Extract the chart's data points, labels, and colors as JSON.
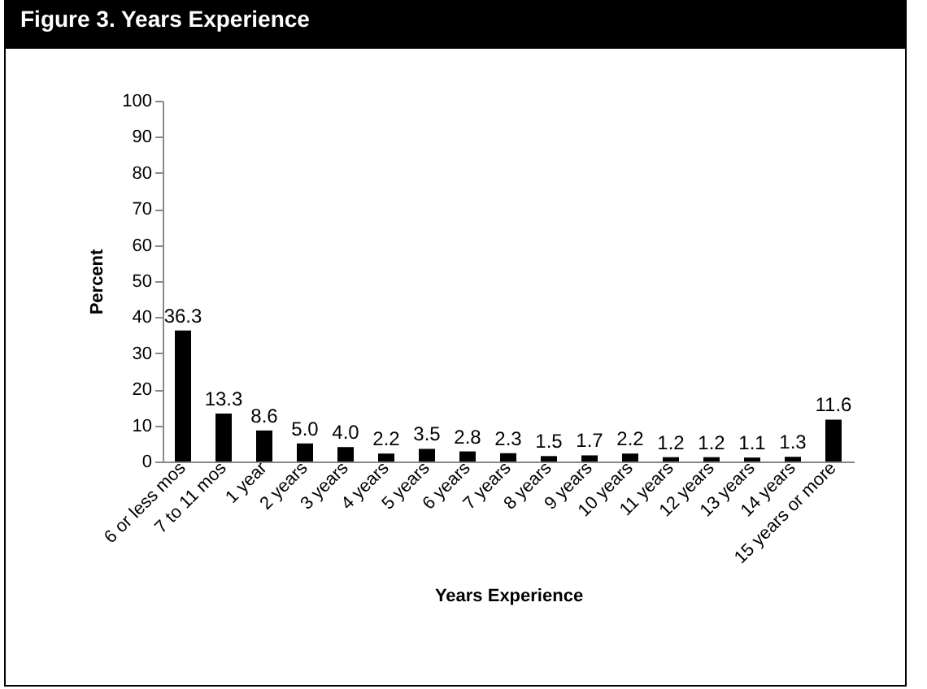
{
  "chart_data": {
    "type": "bar",
    "title": "Figure 3. Years Experience",
    "xlabel": "Years Experience",
    "ylabel": "Percent",
    "categories": [
      "6 or less mos",
      "7 to 11 mos",
      "1 year",
      "2 years",
      "3 years",
      "4 years",
      "5 years",
      "6 years",
      "7 years",
      "8 years",
      "9 years",
      "10 years",
      "11 years",
      "12 years",
      "13 years",
      "14 years",
      "15 years or more"
    ],
    "values": [
      36.3,
      13.3,
      8.6,
      5.0,
      4.0,
      2.2,
      3.5,
      2.8,
      2.3,
      1.5,
      1.7,
      2.2,
      1.2,
      1.2,
      1.1,
      1.3,
      11.6
    ],
    "value_labels": [
      "36.3",
      "13.3",
      "8.6",
      "5.0",
      "4.0",
      "2.2",
      "3.5",
      "2.8",
      "2.3",
      "1.5",
      "1.7",
      "2.2",
      "1.2",
      "1.2",
      "1.1",
      "1.3",
      "11.6"
    ],
    "color": "#000000",
    "ylim": [
      0,
      100
    ],
    "yticks": [
      0,
      10,
      20,
      30,
      40,
      50,
      60,
      70,
      80,
      90,
      100
    ],
    "grid": false
  }
}
